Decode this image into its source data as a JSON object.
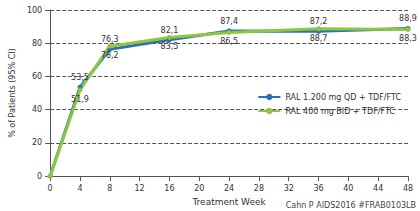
{
  "chart_data": {
    "type": "line",
    "x_label": "Treatment Week",
    "y_label": "% of Patients (95% CI)",
    "annotation": "Cahn P AIDS2016 #FRAB0103LB",
    "x": [
      0,
      4,
      8,
      16,
      24,
      36,
      48
    ],
    "series": [
      {
        "name": "RAL 1.200 mg QD + TDF/FTC",
        "color": "#2e6fb5",
        "marker": "circle",
        "values": [
          0,
          53.5,
          76.3,
          82.1,
          87.4,
          87.2,
          88.9
        ],
        "value_labels": [
          null,
          "53,5",
          "76,3",
          "82,1",
          "87,4",
          "87,2",
          "88,9"
        ]
      },
      {
        "name": "RAL 400 mg BID + TDF/FTC",
        "color": "#8dc63f",
        "marker": "circle",
        "values": [
          0,
          51.9,
          78.2,
          83.5,
          86.5,
          88.7,
          88.3
        ],
        "value_labels": [
          null,
          "51,9",
          "78,2",
          "83,5",
          "86,5",
          "88,7",
          "88,3"
        ]
      }
    ],
    "xlim": [
      0,
      48
    ],
    "xticks": [
      0,
      4,
      8,
      12,
      16,
      20,
      24,
      28,
      32,
      36,
      40,
      44,
      48
    ],
    "ylim": [
      0,
      100
    ],
    "yticks": [
      0,
      20,
      40,
      60,
      80,
      100
    ],
    "grid": "y",
    "legend": "right",
    "data_labels": true
  }
}
